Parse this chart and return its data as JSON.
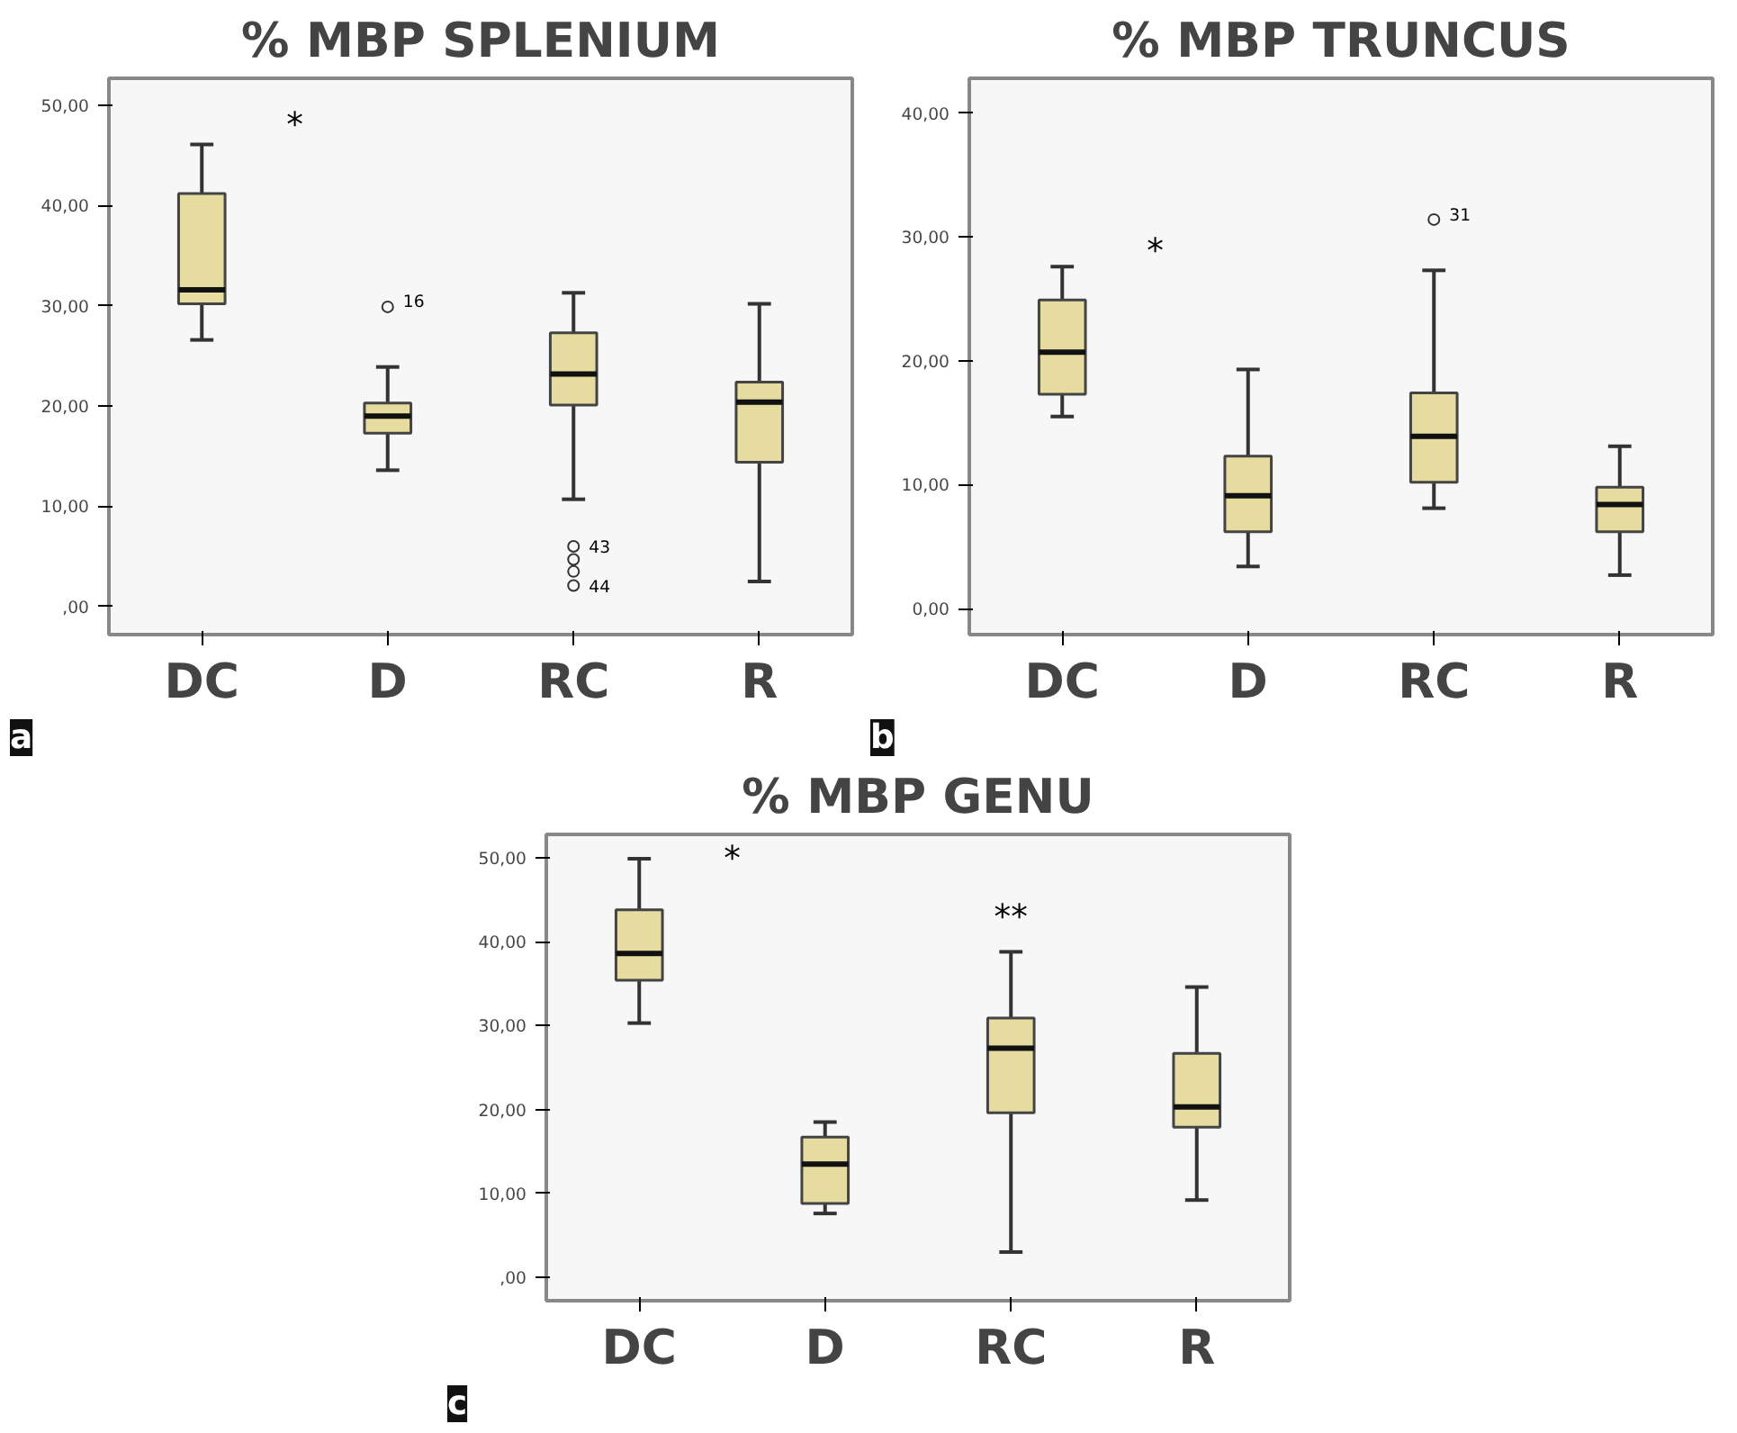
{
  "chart_data": [
    {
      "type": "box",
      "title": "% MBP SPLENIUM",
      "categories": [
        "DC",
        "D",
        "RC",
        "R"
      ],
      "color": "#e6dca0",
      "boxes": [
        {
          "low": 26.6,
          "q1": 30.2,
          "median": 31.6,
          "q3": 41.2,
          "high": 46.1
        },
        {
          "low": 13.6,
          "q1": 17.3,
          "median": 19.0,
          "q3": 20.3,
          "high": 23.9,
          "outliers": [
            29.9
          ]
        },
        {
          "low": 10.7,
          "q1": 20.1,
          "median": 23.2,
          "q3": 27.3,
          "high": 31.3,
          "outliers": [
            6.0,
            4.7,
            3.5,
            2.1
          ]
        },
        {
          "low": 2.5,
          "q1": 14.4,
          "median": 20.4,
          "q3": 22.4,
          "high": 30.2
        }
      ],
      "ylim": [
        -2.8,
        52.7
      ],
      "yticks": [
        {
          "value": 0,
          "label": ",00"
        },
        {
          "value": 10,
          "label": "10,00"
        },
        {
          "value": 20,
          "label": "20,00"
        },
        {
          "value": 30,
          "label": "30,00"
        },
        {
          "value": 40,
          "label": "40,00"
        },
        {
          "value": 50,
          "label": "50,00"
        }
      ],
      "annotations": [
        "a",
        "*",
        "16",
        "43",
        "44"
      ]
    },
    {
      "type": "box",
      "title": "% MBP TRUNCUS",
      "categories": [
        "DC",
        "D",
        "RC",
        "R"
      ],
      "color": "#e6dca0",
      "boxes": [
        {
          "low": 15.5,
          "q1": 17.3,
          "median": 20.7,
          "q3": 24.9,
          "high": 27.6
        },
        {
          "low": 3.4,
          "q1": 6.2,
          "median": 9.1,
          "q3": 12.3,
          "high": 19.3
        },
        {
          "low": 8.1,
          "q1": 10.2,
          "median": 13.9,
          "q3": 17.4,
          "high": 27.3,
          "outliers": [
            31.4
          ]
        },
        {
          "low": 2.7,
          "q1": 6.2,
          "median": 8.4,
          "q3": 9.8,
          "high": 13.1
        }
      ],
      "ylim": [
        -2.1,
        42.8
      ],
      "yticks": [
        {
          "value": 0,
          "label": "0,00"
        },
        {
          "value": 10,
          "label": "10,00"
        },
        {
          "value": 20,
          "label": "20,00"
        },
        {
          "value": 30,
          "label": "30,00"
        },
        {
          "value": 40,
          "label": "40,00"
        }
      ],
      "annotations": [
        "b",
        "*",
        "31"
      ]
    },
    {
      "type": "box",
      "title": "% MBP GENU",
      "categories": [
        "DC",
        "D",
        "RC",
        "R"
      ],
      "color": "#e6dca0",
      "boxes": [
        {
          "low": 30.3,
          "q1": 35.4,
          "median": 38.6,
          "q3": 43.8,
          "high": 49.9
        },
        {
          "low": 7.6,
          "q1": 8.8,
          "median": 13.5,
          "q3": 16.7,
          "high": 18.5
        },
        {
          "low": 3.0,
          "q1": 19.6,
          "median": 27.3,
          "q3": 30.9,
          "high": 38.8
        },
        {
          "low": 9.2,
          "q1": 17.9,
          "median": 20.3,
          "q3": 26.7,
          "high": 34.6
        }
      ],
      "ylim": [
        -2.8,
        52.8
      ],
      "yticks": [
        {
          "value": 0,
          "label": ",00"
        },
        {
          "value": 10,
          "label": "10,00"
        },
        {
          "value": 20,
          "label": "20,00"
        },
        {
          "value": 30,
          "label": "30,00"
        },
        {
          "value": 40,
          "label": "40,00"
        },
        {
          "value": 50,
          "label": "50,00"
        }
      ],
      "annotations": [
        "c",
        "*",
        "**"
      ]
    }
  ]
}
